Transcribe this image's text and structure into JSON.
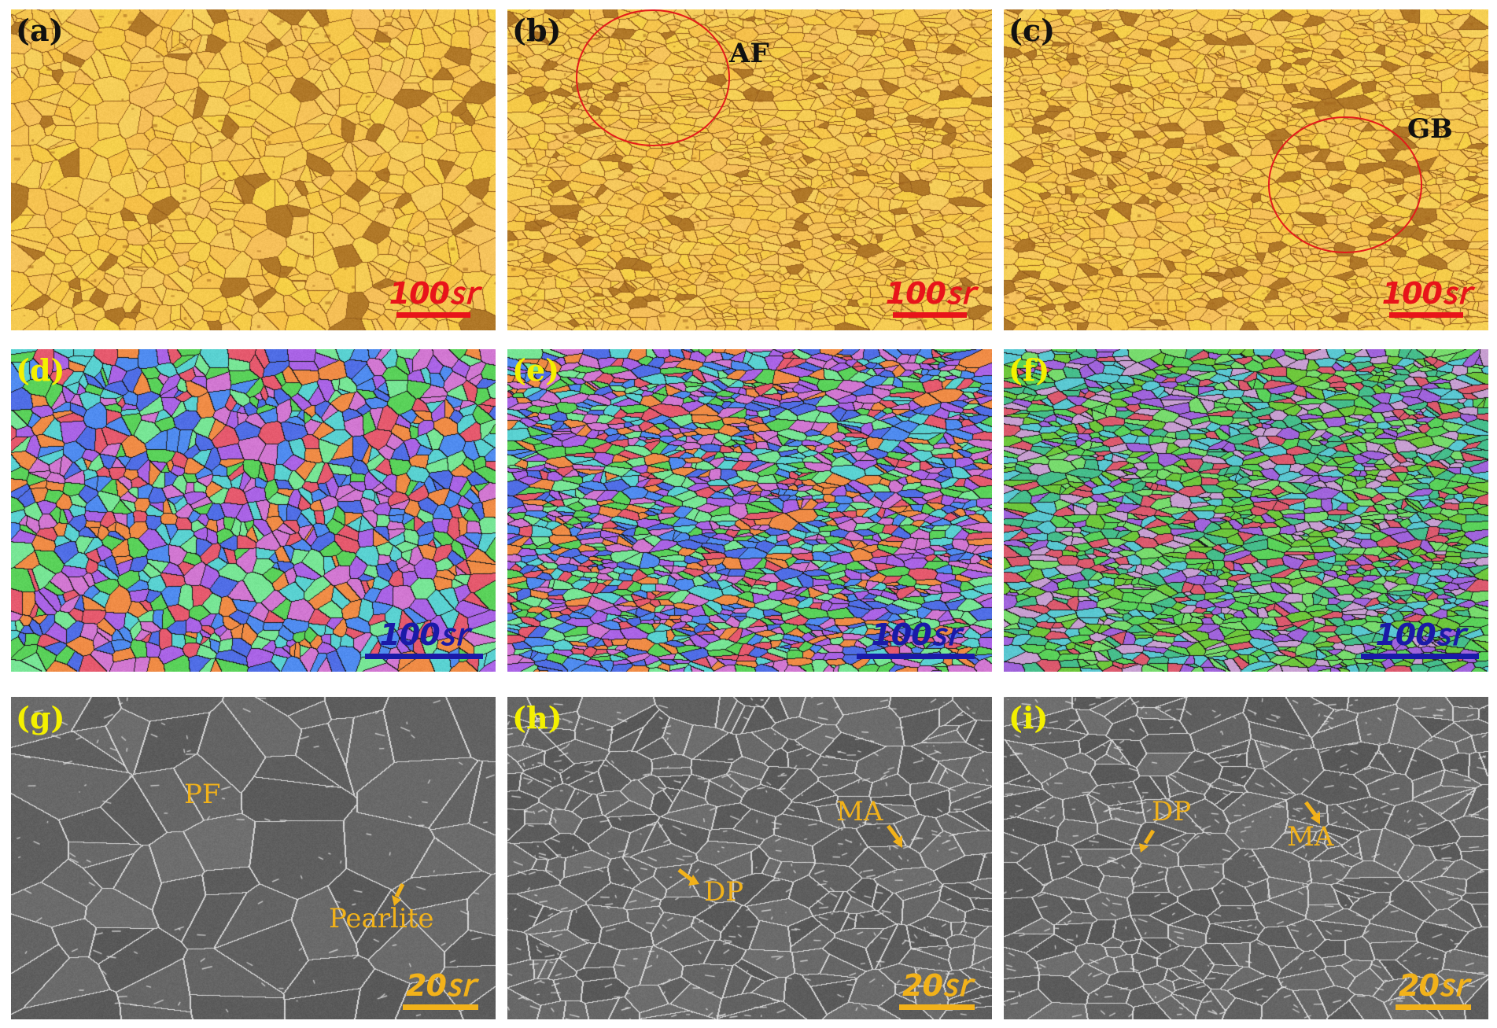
{
  "colors": {
    "optical_label": "#111111",
    "ebsd_label": "#f4f000",
    "sem_label": "#f4f000",
    "optical_scalebar": "#e8141a",
    "ebsd_scalebar": "#1a1aa8",
    "sem_scalebar": "#f2b21a",
    "sem_annotation": "#f2b21a",
    "circle": "#e31b1b"
  },
  "panels": [
    {
      "label": "(a)",
      "kind": "optical",
      "scalebar": "100㏛"
    },
    {
      "label": "(b)",
      "kind": "optical",
      "scalebar": "100㏛",
      "annotation": "AF"
    },
    {
      "label": "(c)",
      "kind": "optical",
      "scalebar": "100㏛",
      "annotation": "GB"
    },
    {
      "label": "(d)",
      "kind": "ebsd",
      "scalebar": "100㏛"
    },
    {
      "label": "(e)",
      "kind": "ebsd",
      "scalebar": "100㏛"
    },
    {
      "label": "(f)",
      "kind": "ebsd",
      "scalebar": "100㏛"
    },
    {
      "label": "(g)",
      "kind": "sem",
      "scalebar": "20㏛",
      "annotations": [
        "PF",
        "Pearlite"
      ]
    },
    {
      "label": "(h)",
      "kind": "sem",
      "scalebar": "20㏛",
      "annotations": [
        "MA",
        "DP"
      ]
    },
    {
      "label": "(i)",
      "kind": "sem",
      "scalebar": "20㏛",
      "annotations": [
        "DP",
        "MA"
      ]
    }
  ]
}
